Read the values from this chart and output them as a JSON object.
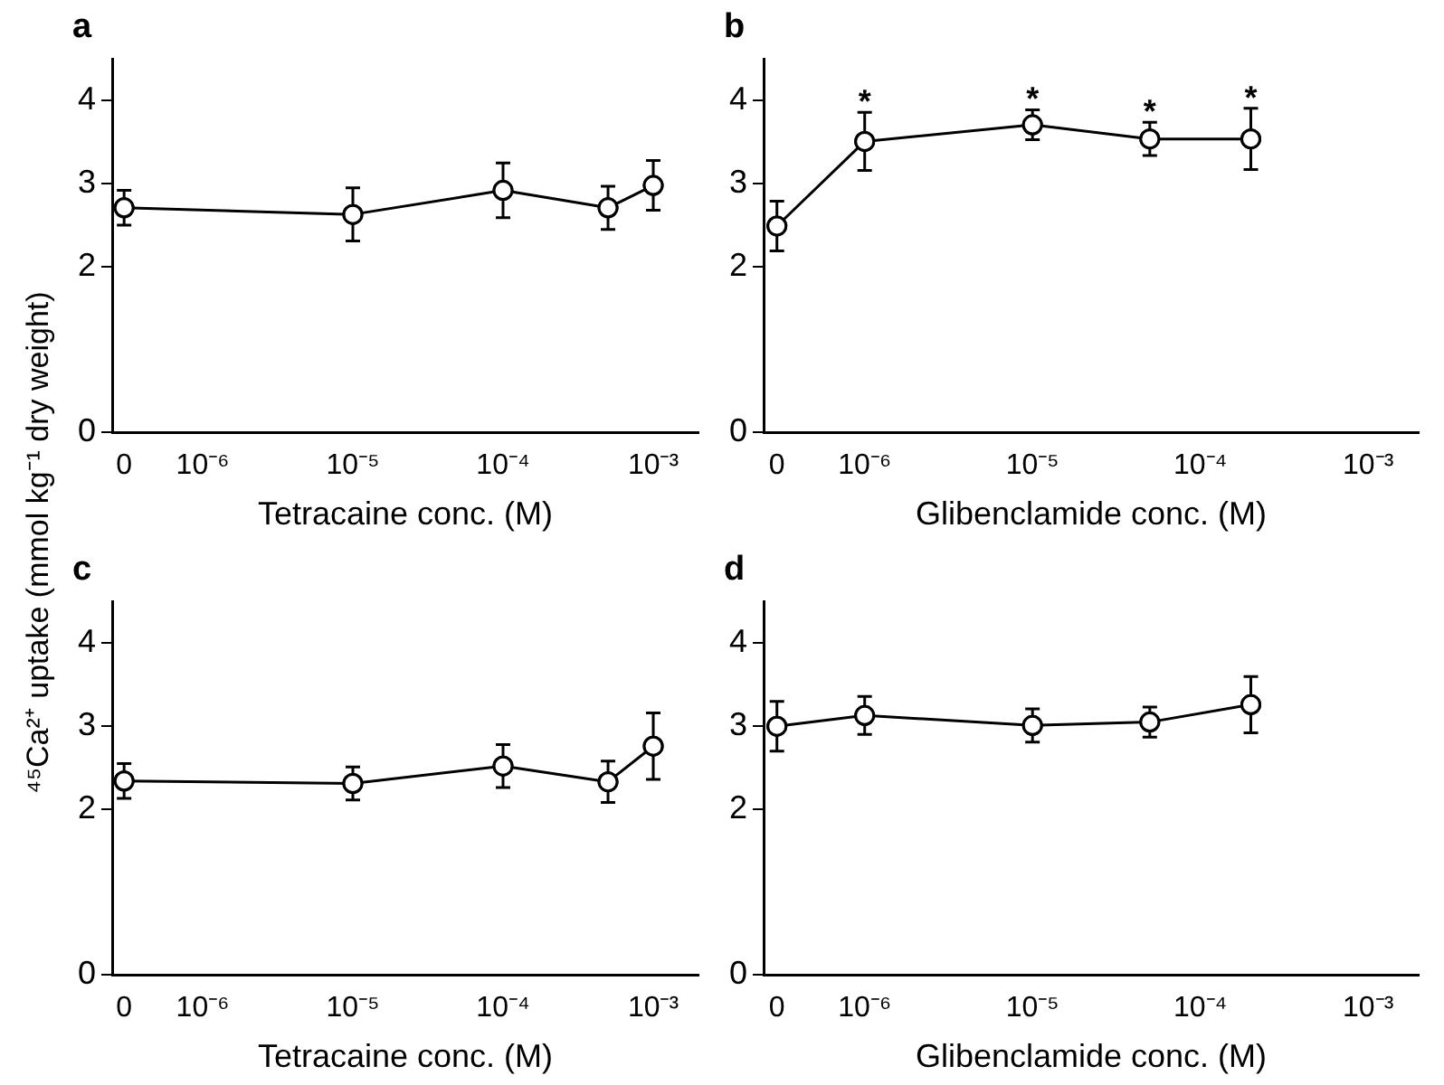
{
  "chart_data": [
    {
      "type": "line",
      "title": "a",
      "xlabel": "Tetracaine conc. (M)",
      "ylabel": "⁴⁵Ca²⁺ uptake (mmol kg⁻¹ dry weight)",
      "log": "x",
      "grid": false,
      "legend": false,
      "marker": "circle",
      "line_style": "solid",
      "xlim": [
        2.5e-07,
        0.002
      ],
      "xticks": [
        {
          "value": 3e-07,
          "label": "0"
        },
        {
          "value": 1e-06,
          "label": "10⁻⁶"
        },
        {
          "value": 1e-05,
          "label": "10⁻⁵"
        },
        {
          "value": 0.0001,
          "label": "10⁻⁴"
        },
        {
          "value": 0.001,
          "label": "10⁻³"
        }
      ],
      "ylim": [
        0,
        4.5
      ],
      "yticks": [
        0,
        2,
        3,
        4
      ],
      "series": [
        {
          "color": "#000000",
          "x": [
            3e-07,
            1e-05,
            0.0001,
            0.0005,
            0.001
          ],
          "values": [
            2.71,
            2.63,
            2.92,
            2.71,
            2.98
          ],
          "errors": [
            0.21,
            0.32,
            0.33,
            0.26,
            0.3
          ]
        }
      ]
    },
    {
      "type": "line",
      "title": "b",
      "xlabel": "Glibenclamide conc. (M)",
      "log": "x",
      "grid": false,
      "legend": false,
      "marker": "circle",
      "line_style": "solid",
      "xlim": [
        2.5e-07,
        0.002
      ],
      "xticks": [
        {
          "value": 3e-07,
          "label": "0"
        },
        {
          "value": 1e-06,
          "label": "10⁻⁶"
        },
        {
          "value": 1e-05,
          "label": "10⁻⁵"
        },
        {
          "value": 0.0001,
          "label": "10⁻⁴"
        },
        {
          "value": 0.001,
          "label": "10⁻³"
        }
      ],
      "ylim": [
        0,
        4.5
      ],
      "yticks": [
        0,
        2,
        3,
        4
      ],
      "annotations": [
        {
          "text": "*",
          "x": 1e-06,
          "y": 3.86
        },
        {
          "text": "*",
          "x": 1e-05,
          "y": 3.89
        },
        {
          "text": "*",
          "x": 5e-05,
          "y": 3.74
        },
        {
          "text": "*",
          "x": 0.0002,
          "y": 3.91
        }
      ],
      "series": [
        {
          "color": "#000000",
          "x": [
            3e-07,
            1e-06,
            1e-05,
            5e-05,
            0.0002
          ],
          "values": [
            2.49,
            3.51,
            3.71,
            3.54,
            3.54
          ],
          "errors": [
            0.3,
            0.35,
            0.18,
            0.2,
            0.37
          ]
        }
      ]
    },
    {
      "type": "line",
      "title": "c",
      "xlabel": "Tetracaine conc. (M)",
      "log": "x",
      "grid": false,
      "legend": false,
      "marker": "circle",
      "line_style": "solid",
      "xlim": [
        2.5e-07,
        0.002
      ],
      "xticks": [
        {
          "value": 3e-07,
          "label": "0"
        },
        {
          "value": 1e-06,
          "label": "10⁻⁶"
        },
        {
          "value": 1e-05,
          "label": "10⁻⁵"
        },
        {
          "value": 0.0001,
          "label": "10⁻⁴"
        },
        {
          "value": 0.001,
          "label": "10⁻³"
        }
      ],
      "ylim": [
        0,
        4.5
      ],
      "yticks": [
        0,
        2,
        3,
        4
      ],
      "series": [
        {
          "color": "#000000",
          "x": [
            3e-07,
            1e-05,
            0.0001,
            0.0005,
            0.001
          ],
          "values": [
            2.34,
            2.31,
            2.52,
            2.33,
            2.76
          ],
          "errors": [
            0.21,
            0.2,
            0.26,
            0.25,
            0.4
          ]
        }
      ]
    },
    {
      "type": "line",
      "title": "d",
      "xlabel": "Glibenclamide conc. (M)",
      "log": "x",
      "grid": false,
      "legend": false,
      "marker": "circle",
      "line_style": "solid",
      "xlim": [
        2.5e-07,
        0.002
      ],
      "xticks": [
        {
          "value": 3e-07,
          "label": "0"
        },
        {
          "value": 1e-06,
          "label": "10⁻⁶"
        },
        {
          "value": 1e-05,
          "label": "10⁻⁵"
        },
        {
          "value": 0.0001,
          "label": "10⁻⁴"
        },
        {
          "value": 0.001,
          "label": "10⁻³"
        }
      ],
      "ylim": [
        0,
        4.5
      ],
      "yticks": [
        0,
        2,
        3,
        4
      ],
      "series": [
        {
          "color": "#000000",
          "x": [
            3e-07,
            1e-06,
            1e-05,
            5e-05,
            0.0002
          ],
          "values": [
            3.0,
            3.13,
            3.01,
            3.05,
            3.26
          ],
          "errors": [
            0.3,
            0.23,
            0.2,
            0.18,
            0.34
          ]
        }
      ]
    }
  ]
}
